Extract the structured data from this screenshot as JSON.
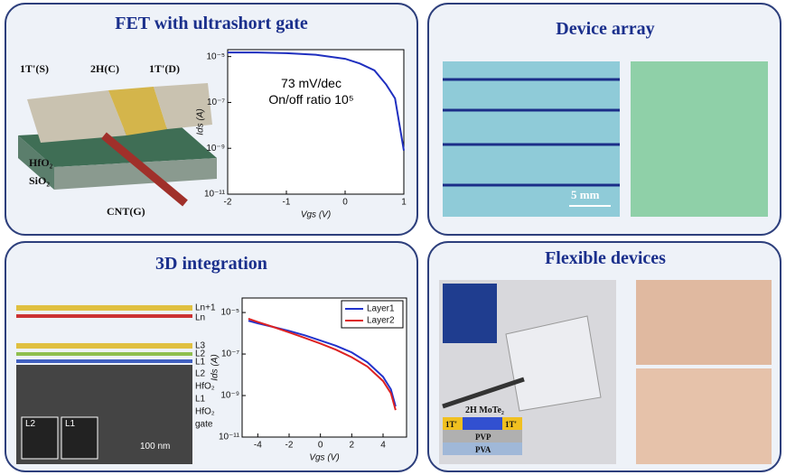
{
  "panels": [
    {
      "title": "FET with ultrashort gate",
      "labels": [
        "1T'(S)",
        "2H(C)",
        "1T'(D)",
        "HfO₂",
        "SiO₂",
        "CNT(G)"
      ]
    },
    {
      "title": "Device array",
      "labels": [
        "5 mm"
      ]
    },
    {
      "title": "3D integration",
      "labels": [
        "Ln+1",
        "Ln",
        "L3",
        "L2",
        "L1",
        "L2",
        "HfO₂",
        "L1",
        "HfO₂",
        "gate",
        "L2",
        "L1",
        "100 nm"
      ]
    },
    {
      "title": "Flexible devices",
      "labels": [
        "2H MoTe₂",
        "1T'",
        "1T'",
        "PVP",
        "PVA"
      ]
    }
  ],
  "chart_data": [
    {
      "type": "line",
      "x_label": "Vgs (V)",
      "y_label": "Ids (A)",
      "log_y": true,
      "annotations": [
        "73 mV/dec",
        "On/off ratio 10⁵"
      ],
      "xlim": [
        -2,
        1
      ],
      "xticks": [
        -2,
        -1,
        0,
        1
      ],
      "ylim": [
        1e-11,
        2e-05
      ],
      "yticks": [
        {
          "value": 1e-05,
          "label": "10⁻⁵"
        },
        {
          "value": 1e-07,
          "label": "10⁻⁷"
        },
        {
          "value": 1e-09,
          "label": "10⁻⁹"
        },
        {
          "value": 1e-11,
          "label": "10⁻¹¹"
        }
      ],
      "x": [
        -2,
        -1.5,
        -1,
        -0.5,
        0,
        0.25,
        0.5,
        0.7,
        0.85,
        1
      ],
      "series": [
        {
          "color": "#1f2fbf",
          "values": [
            1.5e-05,
            1.5e-05,
            1.4e-05,
            1.2e-05,
            8e-06,
            5e-06,
            2.5e-06,
            6e-07,
            1.5e-07,
            8e-10
          ]
        }
      ]
    },
    {
      "type": "line",
      "x_label": "Vgs (V)",
      "y_label": "Ids (A)",
      "log_y": true,
      "legend": "top-right",
      "xlim": [
        -5,
        5.5
      ],
      "xticks": [
        -4,
        -2,
        0,
        2,
        4
      ],
      "ylim": [
        1e-11,
        5e-05
      ],
      "yticks": [
        {
          "value": 1e-05,
          "label": "10⁻⁵"
        },
        {
          "value": 1e-07,
          "label": "10⁻⁷"
        },
        {
          "value": 1e-09,
          "label": "10⁻⁹"
        },
        {
          "value": 1e-11,
          "label": "10⁻¹¹"
        }
      ],
      "x": [
        -4.6,
        -4,
        -3,
        -2,
        -1,
        0,
        1,
        2,
        3,
        4,
        4.5,
        4.8
      ],
      "series": [
        {
          "name": "Layer1",
          "color": "#2233cc",
          "values": [
            4e-06,
            3e-06,
            2e-06,
            1.3e-06,
            8e-07,
            4.5e-07,
            2.5e-07,
            1.2e-07,
            4e-08,
            8e-09,
            2e-09,
            3e-10
          ]
        },
        {
          "name": "Layer2",
          "color": "#dd2222",
          "values": [
            5e-06,
            3.5e-06,
            2e-06,
            1.1e-06,
            6e-07,
            3.2e-07,
            1.6e-07,
            7e-08,
            2.5e-08,
            5e-09,
            1.3e-09,
            2e-10
          ]
        }
      ]
    }
  ]
}
